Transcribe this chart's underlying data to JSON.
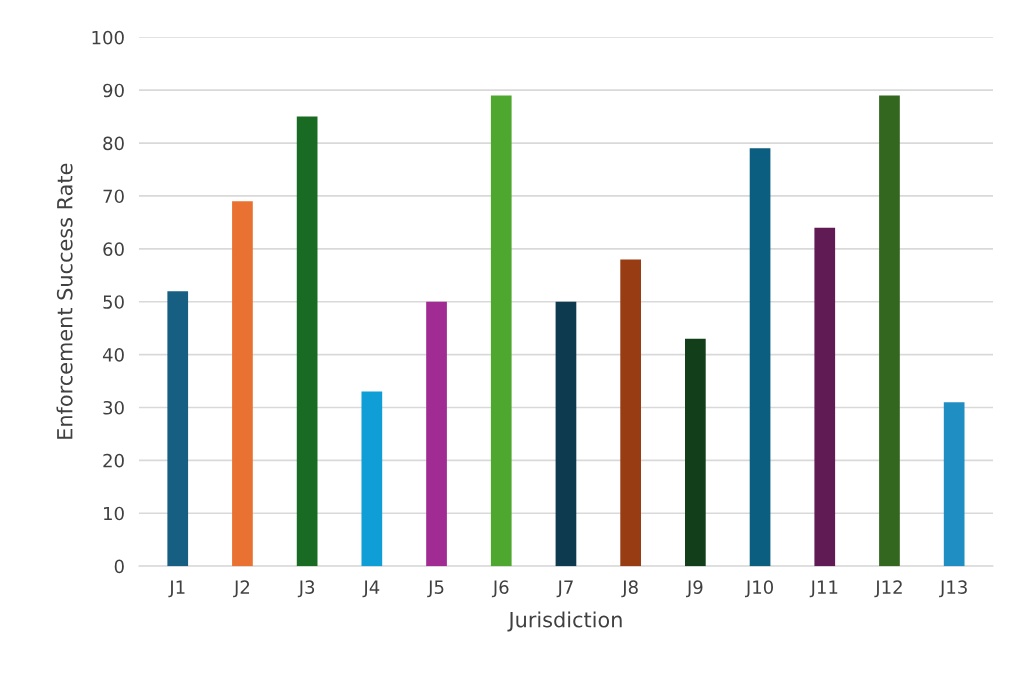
{
  "chart_data": {
    "type": "bar",
    "xlabel": "Jurisdiction",
    "ylabel": "Enforcement Success Rate",
    "categories": [
      "J1",
      "J2",
      "J3",
      "J4",
      "J5",
      "J6",
      "J7",
      "J8",
      "J9",
      "J10",
      "J11",
      "J12",
      "J13"
    ],
    "values": [
      52,
      69,
      85,
      33,
      50,
      89,
      50,
      58,
      43,
      79,
      64,
      89,
      31
    ],
    "colors": [
      "#165e82",
      "#e97132",
      "#196b24",
      "#0f9ed5",
      "#a02b93",
      "#4ea72e",
      "#0e3a50",
      "#983d13",
      "#123f19",
      "#0b5e80",
      "#601a54",
      "#33661f",
      "#1f8fc3"
    ],
    "ylim": [
      0,
      100
    ],
    "yticks": [
      0,
      10,
      20,
      30,
      40,
      50,
      60,
      70,
      80,
      90,
      100
    ],
    "grid": "y"
  }
}
